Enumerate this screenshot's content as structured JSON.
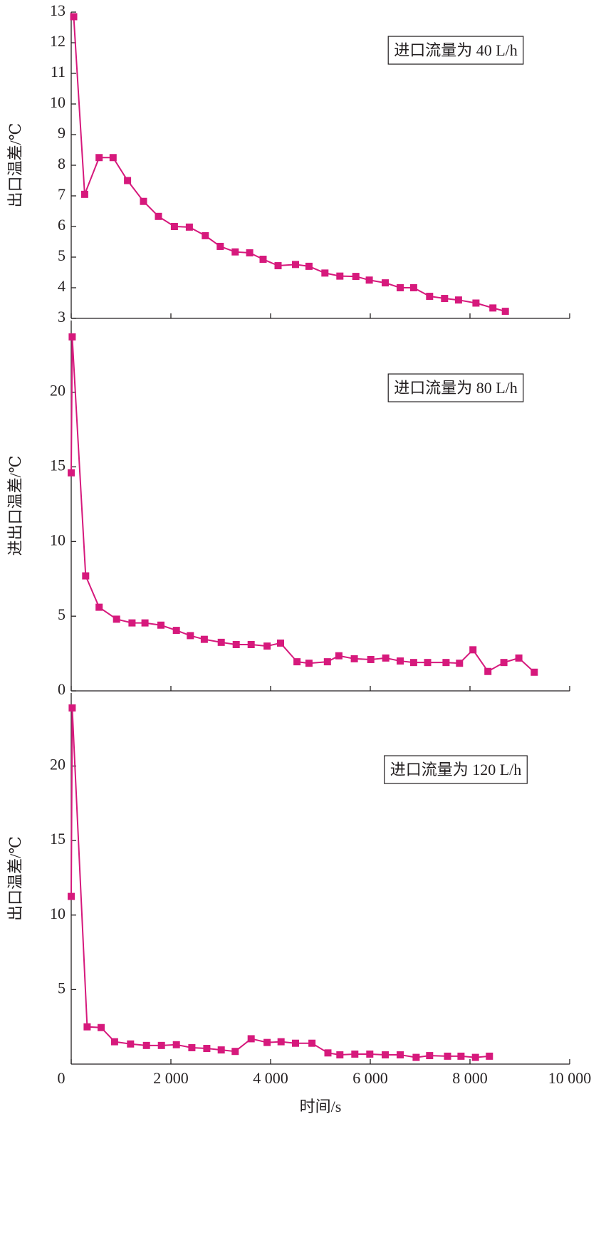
{
  "chart_data": [
    {
      "type": "line",
      "ylabel": "出口温差/℃",
      "annotation": "进口流量为 40 L/h",
      "color": "#d6197c",
      "xlim": [
        0,
        10000
      ],
      "ylim": [
        3,
        13
      ],
      "yticks": [
        3,
        4,
        5,
        6,
        7,
        8,
        9,
        10,
        11,
        12,
        13
      ],
      "x": [
        50,
        270,
        560,
        840,
        1130,
        1450,
        1750,
        2070,
        2370,
        2690,
        2990,
        3290,
        3580,
        3850,
        4150,
        4500,
        4770,
        5090,
        5390,
        5710,
        5980,
        6300,
        6600,
        6870,
        7190,
        7490,
        7770,
        8120,
        8460,
        8710
      ],
      "values": [
        12.85,
        7.05,
        8.25,
        8.25,
        7.5,
        6.82,
        6.33,
        6.0,
        5.98,
        5.7,
        5.35,
        5.17,
        5.14,
        4.93,
        4.72,
        4.76,
        4.7,
        4.48,
        4.38,
        4.37,
        4.25,
        4.16,
        4.0,
        4.0,
        3.72,
        3.65,
        3.6,
        3.5,
        3.34,
        3.23
      ]
    },
    {
      "type": "line",
      "ylabel": "进出口温差/℃",
      "annotation": "进口流量为 80 L/h",
      "color": "#d6197c",
      "xlim": [
        0,
        10000
      ],
      "ylim": [
        0,
        24.8
      ],
      "yticks": [
        0,
        5,
        10,
        15,
        20
      ],
      "x": [
        0,
        20,
        290,
        560,
        910,
        1220,
        1480,
        1800,
        2110,
        2390,
        2670,
        3010,
        3310,
        3610,
        3930,
        4200,
        4530,
        4770,
        5140,
        5370,
        5680,
        6010,
        6310,
        6600,
        6870,
        7150,
        7520,
        7790,
        8060,
        8360,
        8680,
        8980,
        9290
      ],
      "values": [
        14.6,
        23.7,
        7.7,
        5.6,
        4.8,
        4.55,
        4.55,
        4.4,
        4.05,
        3.7,
        3.45,
        3.25,
        3.1,
        3.1,
        3.0,
        3.2,
        1.95,
        1.85,
        1.95,
        2.35,
        2.15,
        2.1,
        2.2,
        2.0,
        1.9,
        1.9,
        1.9,
        1.85,
        2.75,
        1.3,
        1.9,
        2.2,
        1.25
      ]
    },
    {
      "type": "line",
      "ylabel": "出口温差/℃",
      "annotation": "进口流量为 120 L/h",
      "color": "#d6197c",
      "xlabel": "时间/s",
      "xlim": [
        0,
        10000
      ],
      "xticks": [
        0,
        {
          "value": 2000,
          "label": "2 000"
        },
        {
          "value": 4000,
          "label": "4 000"
        },
        {
          "value": 6000,
          "label": "6 000"
        },
        {
          "value": 8000,
          "label": "8 000"
        },
        {
          "value": 10000,
          "label": "10 000"
        }
      ],
      "ylim": [
        0,
        24.9
      ],
      "yticks": [
        5,
        10,
        15,
        20
      ],
      "x": [
        0,
        20,
        320,
        600,
        870,
        1190,
        1510,
        1810,
        2110,
        2420,
        2720,
        3010,
        3290,
        3610,
        3930,
        4210,
        4500,
        4830,
        5150,
        5390,
        5690,
        5990,
        6300,
        6600,
        6920,
        7190,
        7550,
        7820,
        8110,
        8390
      ],
      "values": [
        11.25,
        23.9,
        2.5,
        2.45,
        1.5,
        1.35,
        1.25,
        1.25,
        1.3,
        1.1,
        1.05,
        0.95,
        0.85,
        1.7,
        1.45,
        1.5,
        1.4,
        1.4,
        0.75,
        0.62,
        0.67,
        0.67,
        0.62,
        0.62,
        0.45,
        0.57,
        0.53,
        0.53,
        0.45,
        0.53
      ]
    }
  ]
}
